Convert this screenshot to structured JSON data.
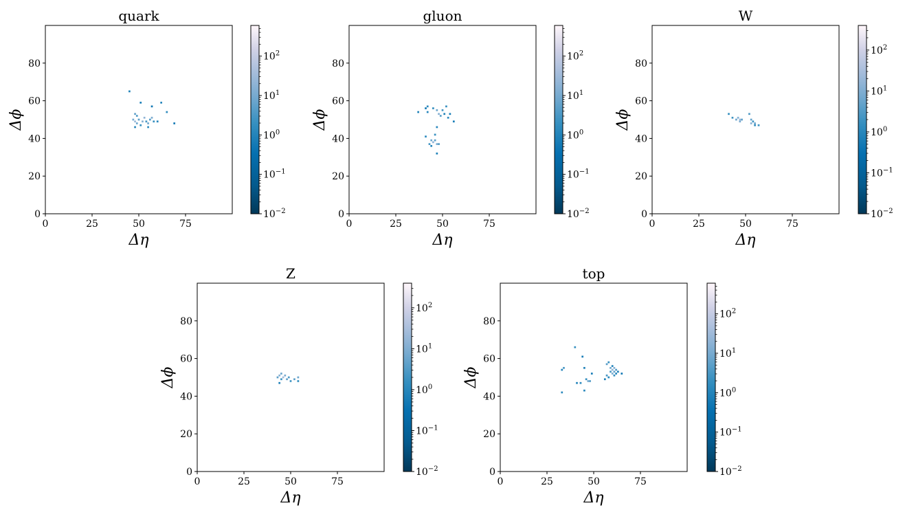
{
  "chart_data": [
    {
      "type": "heatmap",
      "title": "quark",
      "xlabel": "Δη",
      "ylabel": "Δϕ",
      "xlim": [
        0,
        100
      ],
      "ylim": [
        0,
        100
      ],
      "x_ticks": [
        "0",
        "25",
        "50",
        "75"
      ],
      "y_ticks": [
        "0",
        "20",
        "40",
        "60",
        "80"
      ],
      "colorbar": {
        "scale": "log",
        "range": [
          0.01,
          600
        ],
        "ticks": [
          "10",
          "10",
          "10",
          "10",
          "10"
        ],
        "tick_exponents": [
          "−2",
          "−1",
          "0",
          "1",
          "2"
        ],
        "cmap": "PuBu_r"
      },
      "points": [
        [
          45,
          65,
          1.0
        ],
        [
          51,
          59,
          0.8
        ],
        [
          57,
          57,
          0.5
        ],
        [
          62,
          59,
          1.2
        ],
        [
          65,
          54,
          1.5
        ],
        [
          69,
          48,
          0.6
        ],
        [
          48,
          53,
          6
        ],
        [
          49,
          52,
          4
        ],
        [
          47,
          50,
          10
        ],
        [
          48,
          49,
          30
        ],
        [
          49,
          48,
          8
        ],
        [
          50,
          50,
          5
        ],
        [
          48,
          46,
          1.2
        ],
        [
          51,
          47,
          2
        ],
        [
          52,
          49,
          15
        ],
        [
          53,
          51,
          20
        ],
        [
          54,
          49,
          3
        ],
        [
          55,
          48,
          9
        ],
        [
          55,
          46,
          1.5
        ],
        [
          56,
          50,
          4
        ],
        [
          57,
          51,
          12
        ],
        [
          58,
          49,
          2
        ],
        [
          60,
          49,
          1.2
        ]
      ]
    },
    {
      "type": "heatmap",
      "title": "gluon",
      "xlabel": "Δη",
      "ylabel": "Δϕ",
      "xlim": [
        0,
        100
      ],
      "ylim": [
        0,
        100
      ],
      "x_ticks": [
        "0",
        "25",
        "50",
        "75"
      ],
      "y_ticks": [
        "0",
        "20",
        "40",
        "60",
        "80"
      ],
      "colorbar": {
        "scale": "log",
        "range": [
          0.01,
          600
        ],
        "ticks": [
          "10",
          "10",
          "10",
          "10",
          "10"
        ],
        "tick_exponents": [
          "−2",
          "−1",
          "0",
          "1",
          "2"
        ],
        "cmap": "PuBu_r"
      },
      "points": [
        [
          37,
          54,
          1.0
        ],
        [
          41,
          56,
          0.6
        ],
        [
          42,
          57,
          1.5
        ],
        [
          42,
          54,
          1.2
        ],
        [
          45,
          56,
          2
        ],
        [
          47,
          55,
          8
        ],
        [
          48,
          53,
          15
        ],
        [
          49,
          52,
          5
        ],
        [
          50,
          55,
          3
        ],
        [
          51,
          53,
          1
        ],
        [
          52,
          57,
          2
        ],
        [
          53,
          51,
          1.5
        ],
        [
          54,
          53,
          0.8
        ],
        [
          56,
          49,
          0.7
        ],
        [
          47,
          46,
          1.2
        ],
        [
          46,
          42,
          2
        ],
        [
          41,
          41,
          1.5
        ],
        [
          44,
          39,
          8
        ],
        [
          45,
          38,
          20
        ],
        [
          46,
          39,
          5
        ],
        [
          43,
          37,
          3
        ],
        [
          44,
          36,
          1.2
        ],
        [
          47,
          37,
          12
        ],
        [
          48,
          37,
          4
        ],
        [
          47,
          32,
          0.9
        ]
      ]
    },
    {
      "type": "heatmap",
      "title": "W",
      "xlabel": "Δη",
      "ylabel": "Δϕ",
      "xlim": [
        0,
        100
      ],
      "ylim": [
        0,
        100
      ],
      "x_ticks": [
        "0",
        "25",
        "50",
        "75"
      ],
      "y_ticks": [
        "0",
        "20",
        "40",
        "60",
        "80"
      ],
      "colorbar": {
        "scale": "log",
        "range": [
          0.01,
          400
        ],
        "ticks": [
          "10",
          "10",
          "10",
          "10",
          "10"
        ],
        "tick_exponents": [
          "−2",
          "−1",
          "0",
          "1",
          "2"
        ],
        "cmap": "PuBu_r"
      },
      "points": [
        [
          41,
          53,
          1.5
        ],
        [
          43,
          51,
          2
        ],
        [
          45,
          50,
          6
        ],
        [
          46,
          51,
          12
        ],
        [
          47,
          50,
          25
        ],
        [
          48,
          50,
          4
        ],
        [
          47,
          49,
          8
        ],
        [
          52,
          53,
          3
        ],
        [
          53,
          50,
          5
        ],
        [
          53,
          48,
          12
        ],
        [
          54,
          49,
          2
        ],
        [
          55,
          48,
          6
        ],
        [
          55,
          47,
          1.5
        ],
        [
          57,
          47,
          2
        ]
      ]
    },
    {
      "type": "heatmap",
      "title": "Z",
      "xlabel": "Δη",
      "ylabel": "Δϕ",
      "xlim": [
        0,
        100
      ],
      "ylim": [
        0,
        100
      ],
      "x_ticks": [
        "0",
        "25",
        "50",
        "75"
      ],
      "y_ticks": [
        "0",
        "20",
        "40",
        "60",
        "80"
      ],
      "colorbar": {
        "scale": "log",
        "range": [
          0.01,
          400
        ],
        "ticks": [
          "10",
          "10",
          "10",
          "10",
          "10"
        ],
        "tick_exponents": [
          "−2",
          "−1",
          "0",
          "1",
          "2"
        ],
        "cmap": "PuBu_r"
      },
      "points": [
        [
          43,
          50,
          4
        ],
        [
          44,
          51,
          12
        ],
        [
          45,
          52,
          6
        ],
        [
          46,
          50,
          25
        ],
        [
          47,
          51,
          8
        ],
        [
          45,
          49,
          2
        ],
        [
          44,
          47,
          0.8
        ],
        [
          48,
          49,
          5
        ],
        [
          49,
          50,
          3
        ],
        [
          50,
          48,
          2
        ],
        [
          52,
          49,
          4
        ],
        [
          54,
          48,
          1.5
        ],
        [
          54,
          50,
          6
        ]
      ]
    },
    {
      "type": "heatmap",
      "title": "top",
      "xlabel": "Δη",
      "ylabel": "Δϕ",
      "xlim": [
        0,
        100
      ],
      "ylim": [
        0,
        100
      ],
      "x_ticks": [
        "0",
        "25",
        "50",
        "75"
      ],
      "y_ticks": [
        "0",
        "20",
        "40",
        "60",
        "80"
      ],
      "colorbar": {
        "scale": "log",
        "range": [
          0.01,
          600
        ],
        "ticks": [
          "10",
          "10",
          "10",
          "10",
          "10"
        ],
        "tick_exponents": [
          "−2",
          "−1",
          "0",
          "1",
          "2"
        ],
        "cmap": "PuBu_r"
      },
      "points": [
        [
          40,
          66,
          2
        ],
        [
          44,
          61,
          0.7
        ],
        [
          33,
          54,
          1.2
        ],
        [
          34,
          55,
          3
        ],
        [
          41,
          47,
          1
        ],
        [
          43,
          47,
          1.5
        ],
        [
          45,
          55,
          0.8
        ],
        [
          45,
          43,
          1.2
        ],
        [
          46,
          49,
          2
        ],
        [
          47,
          48,
          10
        ],
        [
          48,
          48,
          4
        ],
        [
          49,
          52,
          0.7
        ],
        [
          33,
          42,
          1.5
        ],
        [
          56,
          49,
          0.8
        ],
        [
          57,
          51,
          3
        ],
        [
          58,
          50,
          1.2
        ],
        [
          57,
          57,
          5
        ],
        [
          58,
          58,
          2
        ],
        [
          59,
          55,
          8
        ],
        [
          60,
          54,
          20
        ],
        [
          61,
          53,
          6
        ],
        [
          60,
          52,
          12
        ],
        [
          59,
          53,
          3
        ],
        [
          61,
          55,
          15
        ],
        [
          62,
          54,
          4
        ],
        [
          62,
          52,
          1.2
        ],
        [
          61,
          51,
          2
        ],
        [
          60,
          56,
          1
        ],
        [
          63,
          53,
          0.9
        ],
        [
          65,
          52,
          0.6
        ]
      ]
    }
  ]
}
